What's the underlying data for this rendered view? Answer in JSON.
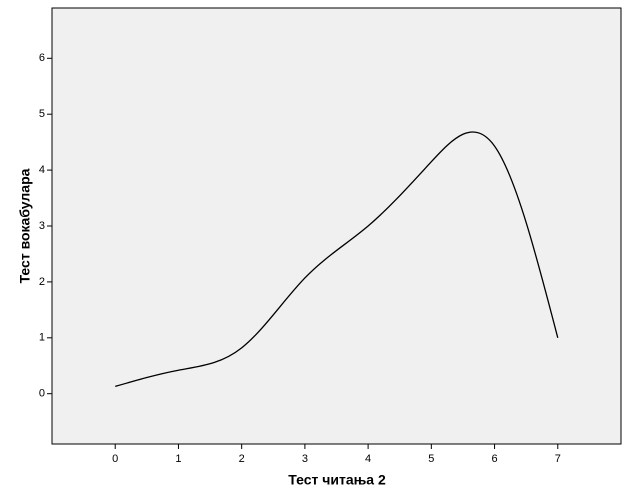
{
  "chart_data": {
    "type": "line",
    "x_label": "Тест читања 2",
    "y_label": "Тест вокабулара",
    "x": [
      0,
      1,
      2,
      3,
      4,
      5,
      6,
      7
    ],
    "values": [
      0.13,
      0.42,
      0.82,
      2.07,
      3.0,
      4.15,
      4.43,
      1.0
    ],
    "color": "#000000",
    "xlim": [
      -1,
      8
    ],
    "xticks": [
      0,
      1,
      2,
      3,
      4,
      5,
      6,
      7
    ],
    "ylim": [
      -0.9,
      6.9
    ],
    "yticks": [
      0,
      1,
      2,
      3,
      4,
      5,
      6
    ]
  }
}
